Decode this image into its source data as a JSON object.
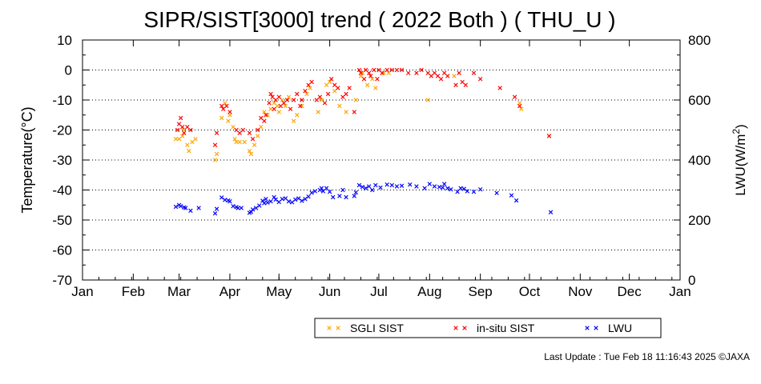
{
  "chart_data": {
    "type": "scatter",
    "title": "SIPR/SIST[3000] trend ( 2022 Both ) ( THU_U )",
    "ylabel": "Temperature(°C)",
    "y2label": "LWU(W/m²)",
    "xlabel": "",
    "x_ticks": [
      "Jan",
      "Feb",
      "Mar",
      "Apr",
      "May",
      "Jun",
      "Jul",
      "Aug",
      "Sep",
      "Oct",
      "Nov",
      "Dec",
      "Jan"
    ],
    "x_unit": "day of year 2022",
    "xlim": [
      1,
      366
    ],
    "ylim": [
      -70,
      10
    ],
    "y_ticks": [
      "10",
      "0",
      "-10",
      "-20",
      "-30",
      "-40",
      "-50",
      "-60",
      "-70"
    ],
    "y2lim": [
      0,
      800
    ],
    "y2_ticks": [
      "800",
      "600",
      "400",
      "200",
      "0"
    ],
    "grid": "horizontal dotted",
    "legend_position": "bottom-right",
    "series": [
      {
        "name": "SGLI SIST",
        "color": "#ffa500",
        "marker": "x",
        "axis": "left",
        "points": [
          [
            58,
            -23
          ],
          [
            60,
            -23
          ],
          [
            62,
            -22
          ],
          [
            63,
            -20
          ],
          [
            65,
            -25
          ],
          [
            66,
            -27
          ],
          [
            68,
            -24
          ],
          [
            70,
            -23
          ],
          [
            82,
            -30
          ],
          [
            83,
            -28
          ],
          [
            86,
            -16
          ],
          [
            88,
            -11
          ],
          [
            90,
            -17
          ],
          [
            91,
            -15
          ],
          [
            93,
            -19
          ],
          [
            94,
            -23
          ],
          [
            95,
            -24
          ],
          [
            97,
            -24
          ],
          [
            100,
            -24
          ],
          [
            103,
            -27
          ],
          [
            104,
            -28
          ],
          [
            106,
            -25
          ],
          [
            108,
            -22
          ],
          [
            110,
            -19
          ],
          [
            112,
            -14
          ],
          [
            114,
            -15
          ],
          [
            116,
            -13
          ],
          [
            118,
            -11
          ],
          [
            120,
            -12
          ],
          [
            121,
            -14
          ],
          [
            123,
            -10
          ],
          [
            125,
            -12
          ],
          [
            127,
            -9
          ],
          [
            130,
            -17
          ],
          [
            132,
            -15
          ],
          [
            135,
            -12
          ],
          [
            138,
            -8
          ],
          [
            140,
            -6
          ],
          [
            145,
            -14
          ],
          [
            147,
            -10
          ],
          [
            150,
            -5
          ],
          [
            152,
            -4
          ],
          [
            155,
            -7
          ],
          [
            158,
            -12
          ],
          [
            162,
            -14
          ],
          [
            168,
            -10
          ],
          [
            171,
            -2
          ],
          [
            172,
            -1
          ],
          [
            175,
            -5
          ],
          [
            178,
            -3
          ],
          [
            180,
            -6
          ],
          [
            185,
            -1
          ],
          [
            188,
            -1
          ],
          [
            212,
            -10
          ],
          [
            228,
            -2
          ],
          [
            268,
            -11
          ],
          [
            269,
            -13
          ],
          [
            286,
            -22
          ]
        ]
      },
      {
        "name": "in-situ SIST",
        "color": "#ff0000",
        "marker": "x",
        "axis": "left",
        "points": [
          [
            59,
            -20
          ],
          [
            60,
            -18
          ],
          [
            61,
            -16
          ],
          [
            62,
            -19
          ],
          [
            63,
            -21
          ],
          [
            65,
            -19
          ],
          [
            67,
            -20
          ],
          [
            82,
            -25
          ],
          [
            83,
            -21
          ],
          [
            86,
            -12
          ],
          [
            87,
            -13
          ],
          [
            89,
            -12
          ],
          [
            91,
            -14
          ],
          [
            95,
            -20
          ],
          [
            97,
            -21
          ],
          [
            99,
            -20
          ],
          [
            103,
            -21
          ],
          [
            105,
            -23
          ],
          [
            108,
            -20
          ],
          [
            110,
            -16
          ],
          [
            112,
            -17
          ],
          [
            113,
            -15
          ],
          [
            115,
            -11
          ],
          [
            116,
            -8
          ],
          [
            117,
            -9
          ],
          [
            118,
            -13
          ],
          [
            119,
            -10
          ],
          [
            121,
            -9
          ],
          [
            122,
            -12
          ],
          [
            124,
            -11
          ],
          [
            126,
            -10
          ],
          [
            128,
            -13
          ],
          [
            130,
            -10
          ],
          [
            132,
            -8
          ],
          [
            134,
            -12
          ],
          [
            135,
            -10
          ],
          [
            137,
            -7
          ],
          [
            139,
            -5
          ],
          [
            141,
            -4
          ],
          [
            144,
            -10
          ],
          [
            146,
            -9
          ],
          [
            149,
            -11
          ],
          [
            151,
            -8
          ],
          [
            153,
            -3
          ],
          [
            155,
            -5
          ],
          [
            157,
            -6
          ],
          [
            160,
            -9
          ],
          [
            162,
            -8
          ],
          [
            164,
            -6
          ],
          [
            167,
            -14
          ],
          [
            170,
            0
          ],
          [
            171,
            -1
          ],
          [
            173,
            -3
          ],
          [
            174,
            0
          ],
          [
            176,
            -1
          ],
          [
            177,
            -2
          ],
          [
            179,
            0
          ],
          [
            181,
            -3
          ],
          [
            182,
            0
          ],
          [
            184,
            -1
          ],
          [
            187,
            0
          ],
          [
            190,
            0
          ],
          [
            193,
            0
          ],
          [
            196,
            0
          ],
          [
            200,
            -1
          ],
          [
            205,
            -1
          ],
          [
            208,
            0
          ],
          [
            212,
            -1
          ],
          [
            214,
            -2
          ],
          [
            216,
            -1
          ],
          [
            218,
            -2
          ],
          [
            220,
            -3
          ],
          [
            222,
            -1
          ],
          [
            224,
            -2
          ],
          [
            229,
            -5
          ],
          [
            231,
            -1
          ],
          [
            233,
            -4
          ],
          [
            235,
            -5
          ],
          [
            240,
            -1
          ],
          [
            244,
            -3
          ],
          [
            256,
            -6
          ],
          [
            265,
            -9
          ],
          [
            268,
            -12
          ],
          [
            286,
            -22
          ]
        ]
      },
      {
        "name": "LWU",
        "color": "#0000ff",
        "marker": "x",
        "axis": "right",
        "points": [
          [
            58,
            244
          ],
          [
            60,
            250
          ],
          [
            61,
            246
          ],
          [
            63,
            242
          ],
          [
            64,
            240
          ],
          [
            67,
            231
          ],
          [
            72,
            240
          ],
          [
            82,
            222
          ],
          [
            83,
            237
          ],
          [
            86,
            275
          ],
          [
            88,
            267
          ],
          [
            90,
            265
          ],
          [
            91,
            262
          ],
          [
            93,
            246
          ],
          [
            95,
            243
          ],
          [
            96,
            240
          ],
          [
            98,
            240
          ],
          [
            103,
            224
          ],
          [
            104,
            227
          ],
          [
            105,
            235
          ],
          [
            107,
            240
          ],
          [
            109,
            248
          ],
          [
            111,
            264
          ],
          [
            112,
            256
          ],
          [
            113,
            270
          ],
          [
            114,
            258
          ],
          [
            116,
            262
          ],
          [
            118,
            276
          ],
          [
            119,
            268
          ],
          [
            121,
            260
          ],
          [
            123,
            270
          ],
          [
            125,
            272
          ],
          [
            127,
            262
          ],
          [
            129,
            259
          ],
          [
            131,
            268
          ],
          [
            133,
            272
          ],
          [
            135,
            264
          ],
          [
            137,
            270
          ],
          [
            139,
            278
          ],
          [
            141,
            291
          ],
          [
            143,
            296
          ],
          [
            146,
            300
          ],
          [
            147,
            306
          ],
          [
            148,
            296
          ],
          [
            150,
            306
          ],
          [
            152,
            294
          ],
          [
            154,
            276
          ],
          [
            158,
            280
          ],
          [
            160,
            300
          ],
          [
            162,
            276
          ],
          [
            167,
            280
          ],
          [
            168,
            292
          ],
          [
            170,
            316
          ],
          [
            172,
            310
          ],
          [
            174,
            306
          ],
          [
            176,
            312
          ],
          [
            178,
            300
          ],
          [
            180,
            316
          ],
          [
            183,
            308
          ],
          [
            187,
            318
          ],
          [
            190,
            316
          ],
          [
            193,
            312
          ],
          [
            196,
            314
          ],
          [
            201,
            318
          ],
          [
            205,
            312
          ],
          [
            210,
            306
          ],
          [
            213,
            320
          ],
          [
            216,
            312
          ],
          [
            219,
            310
          ],
          [
            221,
            308
          ],
          [
            222,
            320
          ],
          [
            224,
            306
          ],
          [
            226,
            302
          ],
          [
            230,
            294
          ],
          [
            232,
            306
          ],
          [
            234,
            304
          ],
          [
            236,
            296
          ],
          [
            240,
            294
          ],
          [
            244,
            302
          ],
          [
            254,
            290
          ],
          [
            263,
            282
          ],
          [
            266,
            265
          ],
          [
            287,
            226
          ]
        ]
      }
    ]
  },
  "legend": {
    "items": [
      {
        "label": "SGLI SIST",
        "color": "#ffa500"
      },
      {
        "label": "in-situ SIST",
        "color": "#ff0000"
      },
      {
        "label": "LWU",
        "color": "#0000ff"
      }
    ]
  },
  "footer": {
    "last_update": "Last Update : Tue Feb 18 11:16:43 2025  ©JAXA"
  }
}
